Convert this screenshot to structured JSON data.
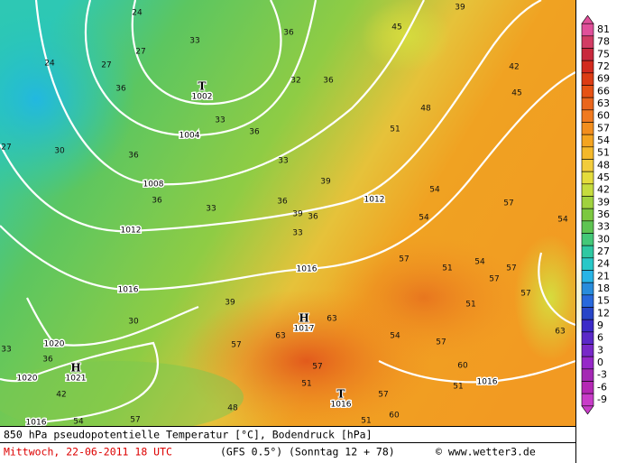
{
  "title": "850 hPa pseudopotentielle Temperatur [°C], Bodendruck [hPa]",
  "date": "Mittwoch, 22-06-2011  18 UTC",
  "model": "(GFS 0.5°)",
  "run": "(Sonntag 12 + 78)",
  "credit": "© www.wetter3.de",
  "colorbar": {
    "values": [
      81,
      78,
      75,
      72,
      69,
      66,
      63,
      60,
      57,
      54,
      51,
      48,
      45,
      42,
      39,
      36,
      33,
      30,
      27,
      24,
      21,
      18,
      15,
      12,
      9,
      6,
      3,
      0,
      -3,
      -6,
      -9
    ],
    "colors": [
      "#e0509a",
      "#d23c64",
      "#c8283c",
      "#d22a1e",
      "#dc3c14",
      "#e65214",
      "#ea661c",
      "#f07a20",
      "#f28e1e",
      "#f4a420",
      "#f4b82a",
      "#f2cc3c",
      "#e4dc3c",
      "#c6dc3e",
      "#a0d23e",
      "#7cc840",
      "#5ec452",
      "#44c878",
      "#2ec8a2",
      "#28c8c8",
      "#28b4e6",
      "#288cdc",
      "#2868dc",
      "#2846c8",
      "#3c2ac8",
      "#5a28c8",
      "#7828c8",
      "#9628c8",
      "#a428b4",
      "#b428b4",
      "#c83cc8"
    ]
  },
  "pressure_centers": [
    {
      "symbol": "T",
      "value": "1002"
    },
    {
      "symbol": "H",
      "value": "1017"
    },
    {
      "symbol": "H",
      "value": "1021"
    },
    {
      "symbol": "T",
      "value": "1016"
    }
  ],
  "isobar_labels": [
    "1004",
    "1008",
    "1012",
    "1012",
    "1016",
    "1016",
    "1016",
    "1020",
    "1020",
    "1016"
  ],
  "contour_labels": [
    "24",
    "27",
    "33",
    "36",
    "24",
    "27",
    "30",
    "27",
    "33",
    "36",
    "36",
    "36",
    "33",
    "36",
    "39",
    "36",
    "32",
    "36",
    "33",
    "39",
    "36",
    "33",
    "45",
    "39",
    "42",
    "45",
    "48",
    "51",
    "54",
    "57",
    "54",
    "54",
    "57",
    "51",
    "54",
    "57",
    "51",
    "57",
    "39",
    "30",
    "33",
    "36",
    "42",
    "57",
    "63",
    "63",
    "54",
    "57",
    "60",
    "57",
    "51",
    "57",
    "60",
    "48",
    "57",
    "54",
    "51",
    "51",
    "57",
    "63"
  ]
}
